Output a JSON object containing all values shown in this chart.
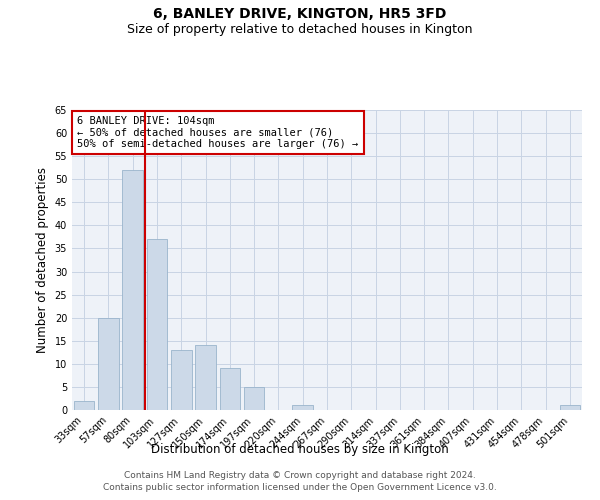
{
  "title": "6, BANLEY DRIVE, KINGTON, HR5 3FD",
  "subtitle": "Size of property relative to detached houses in Kington",
  "xlabel": "Distribution of detached houses by size in Kington",
  "ylabel": "Number of detached properties",
  "bar_color": "#ccd9e8",
  "bar_edge_color": "#9ab4cc",
  "grid_color": "#c8d4e4",
  "background_color": "#eef2f8",
  "categories": [
    "33sqm",
    "57sqm",
    "80sqm",
    "103sqm",
    "127sqm",
    "150sqm",
    "174sqm",
    "197sqm",
    "220sqm",
    "244sqm",
    "267sqm",
    "290sqm",
    "314sqm",
    "337sqm",
    "361sqm",
    "384sqm",
    "407sqm",
    "431sqm",
    "454sqm",
    "478sqm",
    "501sqm"
  ],
  "values": [
    2,
    20,
    52,
    37,
    13,
    14,
    9,
    5,
    0,
    1,
    0,
    0,
    0,
    0,
    0,
    0,
    0,
    0,
    0,
    0,
    1
  ],
  "ylim": [
    0,
    65
  ],
  "yticks": [
    0,
    5,
    10,
    15,
    20,
    25,
    30,
    35,
    40,
    45,
    50,
    55,
    60,
    65
  ],
  "vline_index": 2.5,
  "vline_color": "#cc0000",
  "annotation_text": "6 BANLEY DRIVE: 104sqm\n← 50% of detached houses are smaller (76)\n50% of semi-detached houses are larger (76) →",
  "annotation_box_color": "#ffffff",
  "annotation_box_edge": "#cc0000",
  "footer_line1": "Contains HM Land Registry data © Crown copyright and database right 2024.",
  "footer_line2": "Contains public sector information licensed under the Open Government Licence v3.0.",
  "title_fontsize": 10,
  "subtitle_fontsize": 9,
  "xlabel_fontsize": 8.5,
  "ylabel_fontsize": 8.5,
  "tick_fontsize": 7,
  "footer_fontsize": 6.5,
  "annotation_fontsize": 7.5
}
